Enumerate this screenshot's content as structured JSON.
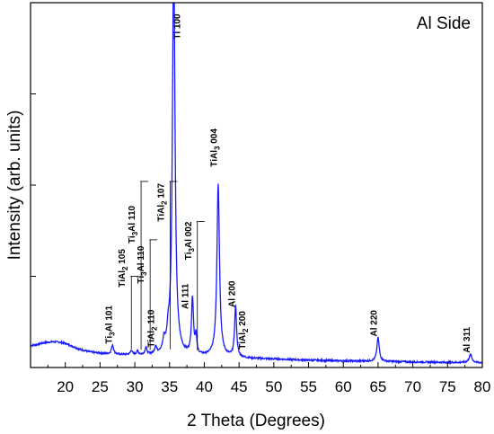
{
  "chart_data": {
    "type": "line",
    "xlabel": "2 Theta (Degrees)",
    "ylabel": "Intensity (arb. units)",
    "inset_label": "Al Side",
    "xlim": [
      15,
      80
    ],
    "ylim": [
      0,
      100
    ],
    "y_tick_labels": "none",
    "grid": false,
    "legend": "none",
    "series_color": "#1a1aff",
    "x_ticks": [
      20,
      25,
      30,
      35,
      40,
      45,
      50,
      55,
      60,
      65,
      70,
      75,
      80
    ],
    "baseline": [
      [
        15,
        6.0
      ],
      [
        16,
        6.3
      ],
      [
        17,
        6.8
      ],
      [
        18,
        7.0
      ],
      [
        19,
        7.0
      ],
      [
        20,
        6.6
      ],
      [
        21,
        5.8
      ],
      [
        22,
        5.0
      ],
      [
        23,
        4.5
      ],
      [
        24,
        4.1
      ],
      [
        25,
        3.9
      ],
      [
        26,
        3.7
      ],
      [
        28,
        3.5
      ],
      [
        30,
        3.4
      ],
      [
        32,
        3.3
      ],
      [
        34,
        3.4
      ],
      [
        35,
        3.8
      ],
      [
        36,
        4.0
      ],
      [
        37,
        3.3
      ],
      [
        40,
        3.0
      ],
      [
        42,
        3.2
      ],
      [
        44,
        2.7
      ],
      [
        46,
        2.5
      ],
      [
        50,
        2.3
      ],
      [
        55,
        2.0
      ],
      [
        60,
        1.8
      ],
      [
        65,
        1.7
      ],
      [
        70,
        1.5
      ],
      [
        75,
        1.4
      ],
      [
        80,
        1.3
      ]
    ],
    "peaks": [
      {
        "x": 26.8,
        "height": 2.5,
        "width": 0.18
      },
      {
        "x": 29.5,
        "height": 1.2,
        "width": 0.15
      },
      {
        "x": 30.4,
        "height": 1.0,
        "width": 0.15
      },
      {
        "x": 31.6,
        "height": 2.0,
        "width": 0.15
      },
      {
        "x": 33.0,
        "height": 2.0,
        "width": 0.15
      },
      {
        "x": 34.2,
        "height": 3.0,
        "width": 0.18
      },
      {
        "x": 34.8,
        "height": 4.0,
        "width": 0.2
      },
      {
        "x": 35.6,
        "height": 110,
        "width": 0.22
      },
      {
        "x": 38.3,
        "height": 15.5,
        "width": 0.17
      },
      {
        "x": 38.8,
        "height": 5.0,
        "width": 0.13
      },
      {
        "x": 42.0,
        "height": 47.0,
        "width": 0.22
      },
      {
        "x": 44.5,
        "height": 14.0,
        "width": 0.17
      },
      {
        "x": 65.0,
        "height": 6.5,
        "width": 0.2
      },
      {
        "x": 78.3,
        "height": 2.2,
        "width": 0.25
      }
    ],
    "annotations": [
      {
        "text": "Ti₃Al 101",
        "main": "Ti",
        "sub": "3",
        "rest": "Al 101",
        "x": 26.7,
        "y": 6.5,
        "line_top": null
      },
      {
        "text": "TiAl₂ 105",
        "main": "TiAl",
        "sub": "2",
        "rest": " 105",
        "x": 28.6,
        "y": 22.0,
        "line_top": 25.0
      },
      {
        "text": "Ti₃Al 110",
        "main": "Ti",
        "sub": "3",
        "rest": "Al 110",
        "x": 30.0,
        "y": 34.0,
        "line_top": 51.0
      },
      {
        "text": "Ti₃Al 110",
        "main": "Ti",
        "sub": "3",
        "rest": "Al 110",
        "x": 31.3,
        "y": 23.0,
        "line_top": 35.0
      },
      {
        "text": "TiAl₂ 110",
        "main": "TiAl",
        "sub": "2",
        "rest": " 110",
        "x": 32.8,
        "y": 5.5,
        "line_top": null
      },
      {
        "text": "TiAl₂ 107",
        "main": "TiAl",
        "sub": "2",
        "rest": " 107",
        "x": 34.2,
        "y": 40.0,
        "line_top": 51.0
      },
      {
        "text": "Ti 100",
        "main": "Ti 100",
        "sub": "",
        "rest": "",
        "x": 36.5,
        "y": 90.0,
        "line_top": null
      },
      {
        "text": "Ti₃Al 002",
        "main": "Ti",
        "sub": "3",
        "rest": "Al 002",
        "x": 38.1,
        "y": 29.5,
        "line_top": 40.0
      },
      {
        "text": "Al 111",
        "main": "Al 111",
        "sub": "",
        "rest": "",
        "x": 37.7,
        "y": 16.0,
        "line_top": null
      },
      {
        "text": "TiAl₃ 004",
        "main": "TiAl",
        "sub": "3",
        "rest": " 004",
        "x": 41.8,
        "y": 55.0,
        "line_top": null
      },
      {
        "text": "Al 200",
        "main": "Al 200",
        "sub": "",
        "rest": "",
        "x": 44.4,
        "y": 16.5,
        "line_top": null
      },
      {
        "text": "TiAl₂ 200",
        "main": "TiAl",
        "sub": "2",
        "rest": " 200",
        "x": 45.9,
        "y": 5.0,
        "line_top": null
      },
      {
        "text": "Al 220",
        "main": "Al 220",
        "sub": "",
        "rest": "",
        "x": 64.8,
        "y": 8.5,
        "line_top": null
      },
      {
        "text": "Al 311",
        "main": "Al 311",
        "sub": "",
        "rest": "",
        "x": 78.2,
        "y": 4.0,
        "line_top": null
      }
    ]
  }
}
